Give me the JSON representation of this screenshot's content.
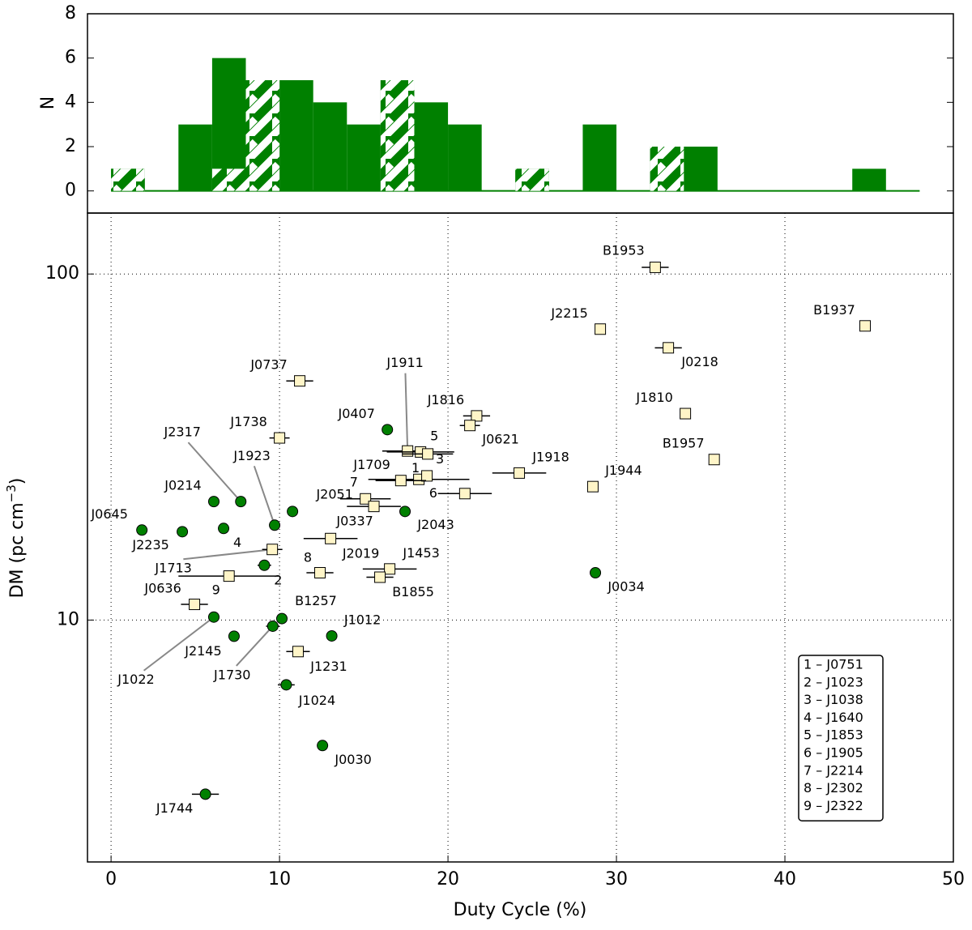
{
  "chart_data": [
    {
      "type": "histogram",
      "y_label": "N",
      "bins": [
        0,
        2,
        4,
        6,
        8,
        10,
        12,
        14,
        16,
        18,
        20,
        22,
        24,
        26,
        28,
        30,
        32,
        34,
        36,
        38,
        40,
        42,
        44,
        46,
        48
      ],
      "counts": [
        1,
        0,
        3,
        6,
        5,
        5,
        4,
        3,
        5,
        4,
        3,
        0,
        1,
        0,
        3,
        0,
        2,
        2,
        0,
        0,
        0,
        0,
        1,
        0
      ],
      "hatched_counts": [
        1,
        0,
        0,
        1,
        5,
        0,
        0,
        0,
        5,
        0,
        0,
        0,
        1,
        0,
        0,
        0,
        2,
        0,
        0,
        0,
        0,
        0,
        0,
        0
      ],
      "color": "#008000",
      "xlim": [
        -1.4,
        50
      ],
      "ylim": [
        -1,
        8
      ],
      "yticks": [
        0,
        2,
        4,
        6,
        8
      ]
    },
    {
      "type": "scatter",
      "x_label": "Duty Cycle (%)",
      "y_label": "DM (pc cm",
      "y_label_exp": "−3",
      "y_label_end": ")",
      "log_y": true,
      "grid": true,
      "xlim": [
        -1.4,
        50
      ],
      "xticks": [
        0,
        10,
        20,
        30,
        40,
        50
      ],
      "ylim": [
        2,
        150
      ],
      "yticks": [
        10,
        100
      ],
      "series": [
        {
          "marker": "circle",
          "color": "#008000",
          "labels": [
            "J0645",
            "J2235",
            "J0214",
            "J2317",
            "4",
            "J1923",
            null,
            "J0407",
            "J2043",
            "J2145",
            "J1022",
            "J1730",
            "B1257",
            "J1012",
            "J1024",
            "J0030",
            "J1744",
            "J0034",
            "2"
          ],
          "x": [
            1.83,
            4.23,
            6.1,
            7.7,
            6.68,
            9.71,
            10.77,
            16.4,
            17.45,
            7.3,
            6.1,
            9.6,
            10.14,
            13.1,
            10.4,
            12.55,
            5.6,
            28.75,
            9.1
          ],
          "values": [
            18.2,
            18.0,
            22.0,
            22.0,
            18.4,
            18.8,
            20.6,
            35.5,
            20.6,
            8.98,
            10.2,
            9.6,
            10.1,
            9.0,
            6.5,
            4.34,
            3.14,
            13.7,
            14.4
          ],
          "xerr": [
            null,
            null,
            null,
            null,
            null,
            null,
            null,
            null,
            null,
            null,
            null,
            0.4,
            null,
            null,
            0.5,
            null,
            0.8,
            null,
            0.4
          ]
        },
        {
          "marker": "square",
          "color": "#fff5c8",
          "labels": [
            "B1953",
            "J2215",
            "B1937",
            "J0218",
            "J0737",
            "J1810",
            "J1816",
            "J0621",
            "J1738",
            "J1911",
            "5",
            "3",
            "B1957",
            "J1918",
            "1",
            "J1709",
            "7",
            "J1944",
            "6",
            "J2051",
            "J2019",
            "J0337",
            "J1453",
            "B1855",
            "8",
            "9",
            "J1713",
            "J0636",
            "J1231"
          ],
          "x": [
            32.3,
            29.04,
            44.76,
            33.08,
            11.2,
            34.09,
            21.7,
            21.3,
            10.0,
            17.6,
            18.37,
            18.8,
            35.8,
            24.23,
            18.27,
            18.75,
            17.2,
            28.6,
            21.0,
            15.1,
            15.6,
            13.03,
            16.54,
            15.96,
            12.4,
            7.0,
            9.57,
            4.95,
            11.1
          ],
          "values": [
            104.5,
            69.3,
            70.8,
            61.2,
            49.1,
            39.5,
            38.9,
            36.5,
            33.6,
            30.8,
            30.6,
            30.2,
            29.1,
            26.6,
            25.5,
            26.1,
            25.3,
            24.3,
            23.2,
            22.4,
            21.3,
            17.2,
            14.05,
            13.3,
            13.7,
            13.4,
            16.0,
            11.1,
            8.11
          ],
          "xerr": [
            0.8,
            null,
            null,
            0.8,
            0.8,
            null,
            0.8,
            0.6,
            0.6,
            1.5,
            2,
            1.5,
            null,
            1.6,
            3,
            null,
            1.5,
            null,
            1.6,
            1.5,
            1.6,
            1.6,
            1.6,
            0.8,
            0.8,
            3,
            0.6,
            0.8,
            0.7
          ]
        }
      ],
      "legend_items": [
        "1 – J0751",
        "2 – J1023",
        "3 – J1038",
        "4 – J1640",
        "5 – J1853",
        "6 – J1905",
        "7 – J2214",
        "8 – J2302",
        "9 – J2322"
      ]
    }
  ]
}
